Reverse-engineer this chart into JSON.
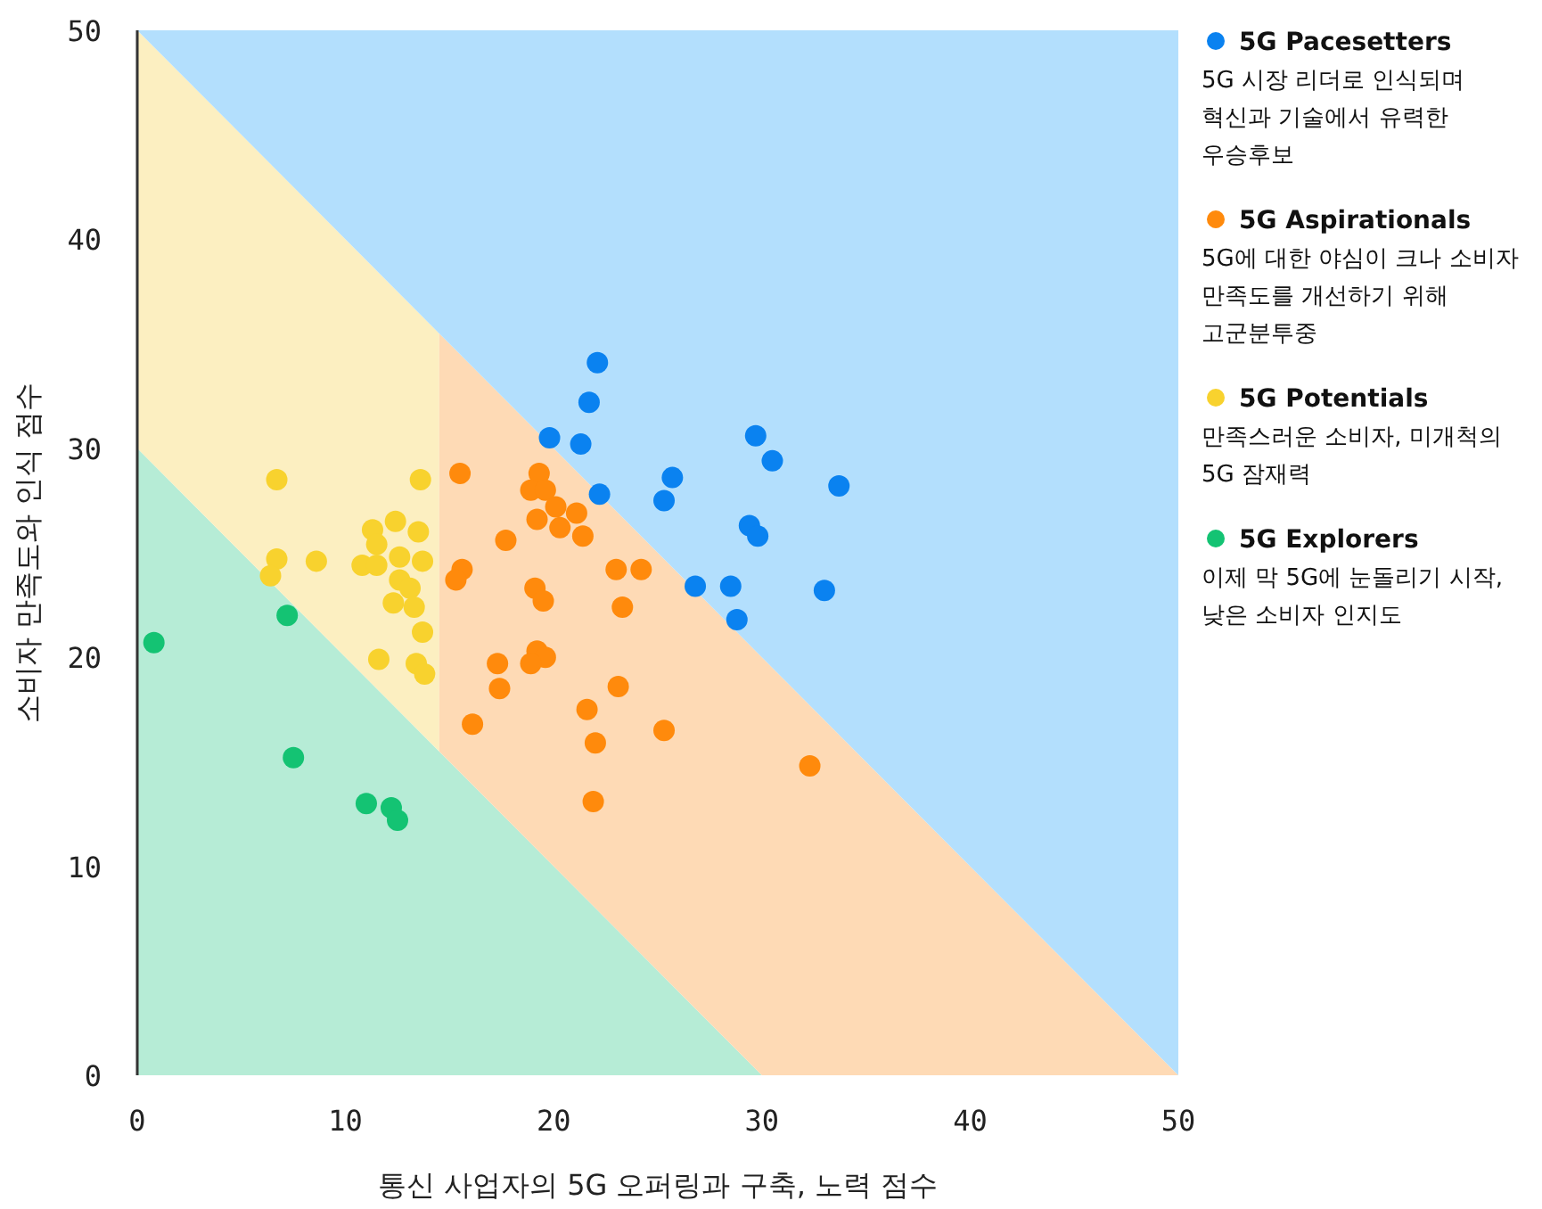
{
  "chart_data": {
    "type": "scatter",
    "xlabel": "통신 사업자의 5G 오퍼링과 구축, 노력 점수",
    "ylabel": "소비자 만족도와 인식 점수",
    "xlim": [
      0,
      50
    ],
    "ylim": [
      0,
      50
    ],
    "xticks": [
      0,
      10,
      20,
      30,
      40,
      50
    ],
    "yticks": [
      0,
      10,
      20,
      30,
      40,
      50
    ],
    "grid": false,
    "legend": "right",
    "stacked": true,
    "x": [
      0,
      14.5,
      14.5,
      30,
      50
    ],
    "series": [
      {
        "type": "area",
        "color": "#b6ecd6",
        "values": [
          30,
          15.5,
          15.5,
          0,
          0
        ]
      },
      {
        "type": "area",
        "color": "#fcefc1",
        "values": [
          20,
          20,
          null,
          null,
          null
        ]
      },
      {
        "type": "area",
        "color": "#fedab5",
        "values": [
          null,
          null,
          20,
          20,
          0
        ]
      },
      {
        "type": "area",
        "color": "#b3dffd",
        "values": [
          0,
          14.5,
          14.5,
          30,
          50
        ]
      },
      {
        "name": "5G Pacesetters",
        "marker": "circle",
        "color": "#0a82f0",
        "x": [
          22.1,
          21.7,
          19.8,
          21.3,
          29.7,
          30.5,
          33.7,
          25.7,
          25.3,
          22.2,
          29.4,
          29.8,
          26.8,
          28.5,
          28.8,
          33.0
        ],
        "values": [
          34.1,
          32.2,
          30.5,
          30.2,
          30.6,
          29.4,
          28.2,
          28.6,
          27.5,
          27.8,
          26.3,
          25.8,
          23.4,
          23.4,
          21.8,
          23.2
        ]
      },
      {
        "name": "5G Aspirationals",
        "marker": "circle",
        "color": "#ff8a0c",
        "x": [
          15.5,
          19.3,
          18.9,
          19.6,
          20.1,
          21.1,
          19.2,
          20.3,
          21.4,
          17.7,
          15.6,
          15.3,
          23.0,
          24.2,
          19.1,
          19.5,
          23.3,
          19.2,
          19.6,
          18.9,
          17.3,
          17.4,
          23.1,
          21.6,
          25.3,
          16.1,
          22.0,
          21.9,
          32.3
        ],
        "values": [
          28.8,
          28.8,
          28.0,
          28.0,
          27.2,
          26.9,
          26.6,
          26.2,
          25.8,
          25.6,
          24.2,
          23.7,
          24.2,
          24.2,
          23.3,
          22.7,
          22.4,
          20.3,
          20.0,
          19.7,
          19.7,
          18.5,
          18.6,
          17.5,
          16.5,
          16.8,
          15.9,
          13.1,
          14.8
        ]
      },
      {
        "name": "5G Potentials",
        "marker": "circle",
        "color": "#f8d22e",
        "x": [
          6.7,
          13.6,
          12.4,
          11.3,
          13.5,
          11.5,
          6.7,
          8.6,
          10.8,
          11.5,
          12.6,
          13.7,
          6.4,
          12.6,
          13.1,
          12.3,
          13.3,
          13.7,
          11.6,
          13.4,
          13.8
        ],
        "values": [
          28.5,
          28.5,
          26.5,
          26.1,
          26.0,
          25.4,
          24.7,
          24.6,
          24.4,
          24.4,
          24.8,
          24.6,
          23.9,
          23.7,
          23.3,
          22.6,
          22.4,
          21.2,
          19.9,
          19.7,
          19.2
        ]
      },
      {
        "name": "5G Explorers",
        "marker": "circle",
        "color": "#14c373",
        "x": [
          0.8,
          7.2,
          7.5,
          11.0,
          12.2,
          12.5
        ],
        "values": [
          20.7,
          22.0,
          15.2,
          13.0,
          12.8,
          12.2
        ]
      }
    ],
    "annotations": [
      "5G 시장 리더로 인식되며\n혁신과 기술에서 유력한\n우승후보",
      "5G에 대한 야심이 크나 소비자\n만족도를 개선하기 위해\n고군분투중",
      "만족스러운 소비자, 미개척의\n5G 잠재력",
      "이제 막 5G에 눈돌리기 시작,\n낮은 소비자 인지도"
    ]
  }
}
